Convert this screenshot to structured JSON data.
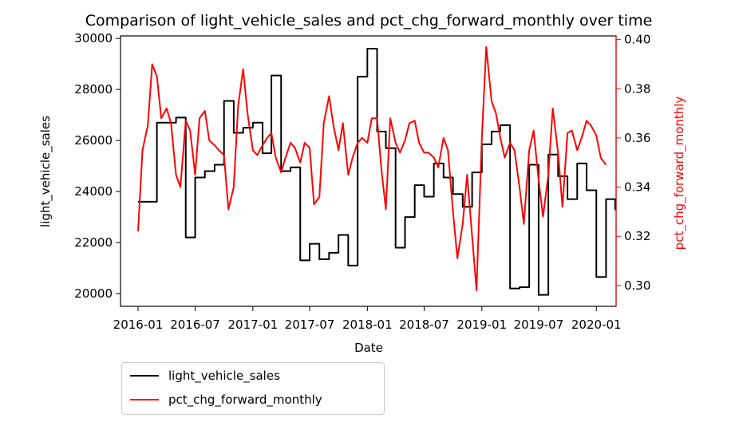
{
  "chart_data": {
    "type": "line",
    "title": "Comparison of light_vehicle_sales and pct_chg_forward_monthly over time",
    "xlabel": "Date",
    "ylabel_left": "light_vehicle_sales",
    "ylabel_right": "pct_chg_forward_monthly",
    "x_ticks": [
      "2016-01",
      "2016-07",
      "2017-01",
      "2017-07",
      "2018-01",
      "2018-07",
      "2019-01",
      "2019-07",
      "2020-01"
    ],
    "y_left_ticks": [
      "20000",
      "22000",
      "24000",
      "26000",
      "28000",
      "30000"
    ],
    "y_right_ticks": [
      "0.30",
      "0.32",
      "0.34",
      "0.36",
      "0.38",
      "0.40"
    ],
    "ylim_left": [
      19500,
      30100
    ],
    "ylim_right": [
      0.2915,
      0.4015
    ],
    "xlim": [
      "2015-11-06",
      "2020-03-04"
    ],
    "legend_placement": "below-left",
    "colors": {
      "light_vehicle_sales": "#000000",
      "pct_chg_forward_monthly": "#ff0000"
    },
    "series": [
      {
        "name": "light_vehicle_sales",
        "axis": "left",
        "step": true,
        "points": [
          [
            "2016-01-01",
            23600
          ],
          [
            "2016-02-01",
            23600
          ],
          [
            "2016-03-01",
            26700
          ],
          [
            "2016-04-01",
            26700
          ],
          [
            "2016-05-01",
            26900
          ],
          [
            "2016-06-01",
            22200
          ],
          [
            "2016-07-01",
            24550
          ],
          [
            "2016-08-01",
            24800
          ],
          [
            "2016-09-01",
            25050
          ],
          [
            "2016-10-01",
            27550
          ],
          [
            "2016-11-01",
            26300
          ],
          [
            "2016-12-01",
            26500
          ],
          [
            "2017-01-01",
            26700
          ],
          [
            "2017-02-01",
            25500
          ],
          [
            "2017-03-01",
            28550
          ],
          [
            "2017-04-01",
            24800
          ],
          [
            "2017-05-01",
            24950
          ],
          [
            "2017-06-01",
            21300
          ],
          [
            "2017-07-01",
            21950
          ],
          [
            "2017-08-01",
            21350
          ],
          [
            "2017-09-01",
            21600
          ],
          [
            "2017-10-01",
            22300
          ],
          [
            "2017-11-01",
            21100
          ],
          [
            "2017-12-01",
            28500
          ],
          [
            "2018-01-01",
            29600
          ],
          [
            "2018-02-01",
            26350
          ],
          [
            "2018-03-01",
            25700
          ],
          [
            "2018-04-01",
            21800
          ],
          [
            "2018-05-01",
            23000
          ],
          [
            "2018-06-01",
            24250
          ],
          [
            "2018-07-01",
            23800
          ],
          [
            "2018-08-01",
            25100
          ],
          [
            "2018-09-01",
            24550
          ],
          [
            "2018-10-01",
            23900
          ],
          [
            "2018-11-01",
            23400
          ],
          [
            "2018-12-01",
            24750
          ],
          [
            "2019-01-01",
            25850
          ],
          [
            "2019-02-01",
            26350
          ],
          [
            "2019-03-01",
            26600
          ],
          [
            "2019-04-01",
            20200
          ],
          [
            "2019-05-01",
            20250
          ],
          [
            "2019-06-01",
            25050
          ],
          [
            "2019-07-01",
            19950
          ],
          [
            "2019-08-01",
            25450
          ],
          [
            "2019-09-01",
            24600
          ],
          [
            "2019-10-01",
            23700
          ],
          [
            "2019-11-01",
            25100
          ],
          [
            "2019-12-01",
            24050
          ],
          [
            "2020-01-01",
            20650
          ],
          [
            "2020-02-01",
            23700
          ],
          [
            "2020-03-01",
            23300
          ],
          [
            "2020-03-04",
            23300
          ]
        ]
      },
      {
        "name": "pct_chg_forward_monthly",
        "axis": "right",
        "step": false,
        "points": [
          [
            "2016-01-01",
            0.322
          ],
          [
            "2016-01-15",
            0.355
          ],
          [
            "2016-02-01",
            0.365
          ],
          [
            "2016-02-15",
            0.39
          ],
          [
            "2016-03-01",
            0.385
          ],
          [
            "2016-03-15",
            0.368
          ],
          [
            "2016-04-01",
            0.372
          ],
          [
            "2016-04-15",
            0.366
          ],
          [
            "2016-05-01",
            0.345
          ],
          [
            "2016-05-15",
            0.34
          ],
          [
            "2016-06-01",
            0.367
          ],
          [
            "2016-06-15",
            0.363
          ],
          [
            "2016-07-01",
            0.345
          ],
          [
            "2016-07-15",
            0.368
          ],
          [
            "2016-08-01",
            0.371
          ],
          [
            "2016-08-15",
            0.359
          ],
          [
            "2016-09-01",
            0.357
          ],
          [
            "2016-09-15",
            0.355
          ],
          [
            "2016-10-01",
            0.353
          ],
          [
            "2016-10-15",
            0.331
          ],
          [
            "2016-11-01",
            0.34
          ],
          [
            "2016-11-15",
            0.373
          ],
          [
            "2016-12-01",
            0.388
          ],
          [
            "2016-12-15",
            0.37
          ],
          [
            "2017-01-01",
            0.355
          ],
          [
            "2017-01-15",
            0.353
          ],
          [
            "2017-02-01",
            0.357
          ],
          [
            "2017-02-15",
            0.36
          ],
          [
            "2017-03-01",
            0.362
          ],
          [
            "2017-03-15",
            0.352
          ],
          [
            "2017-04-01",
            0.346
          ],
          [
            "2017-04-15",
            0.352
          ],
          [
            "2017-05-01",
            0.358
          ],
          [
            "2017-05-15",
            0.356
          ],
          [
            "2017-06-01",
            0.35
          ],
          [
            "2017-06-15",
            0.358
          ],
          [
            "2017-07-01",
            0.356
          ],
          [
            "2017-07-15",
            0.333
          ],
          [
            "2017-08-01",
            0.336
          ],
          [
            "2017-08-15",
            0.366
          ],
          [
            "2017-09-01",
            0.377
          ],
          [
            "2017-09-15",
            0.365
          ],
          [
            "2017-10-01",
            0.355
          ],
          [
            "2017-10-15",
            0.366
          ],
          [
            "2017-11-01",
            0.345
          ],
          [
            "2017-11-15",
            0.352
          ],
          [
            "2017-12-01",
            0.358
          ],
          [
            "2017-12-15",
            0.36
          ],
          [
            "2018-01-01",
            0.358
          ],
          [
            "2018-01-15",
            0.368
          ],
          [
            "2018-02-01",
            0.368
          ],
          [
            "2018-02-15",
            0.347
          ],
          [
            "2018-03-01",
            0.331
          ],
          [
            "2018-03-15",
            0.368
          ],
          [
            "2018-04-01",
            0.358
          ],
          [
            "2018-04-15",
            0.354
          ],
          [
            "2018-05-01",
            0.359
          ],
          [
            "2018-05-15",
            0.366
          ],
          [
            "2018-06-01",
            0.367
          ],
          [
            "2018-06-15",
            0.358
          ],
          [
            "2018-07-01",
            0.354
          ],
          [
            "2018-07-15",
            0.354
          ],
          [
            "2018-08-01",
            0.352
          ],
          [
            "2018-08-15",
            0.348
          ],
          [
            "2018-09-01",
            0.36
          ],
          [
            "2018-09-15",
            0.355
          ],
          [
            "2018-10-01",
            0.33
          ],
          [
            "2018-10-15",
            0.311
          ],
          [
            "2018-11-01",
            0.325
          ],
          [
            "2018-11-15",
            0.345
          ],
          [
            "2018-12-01",
            0.32
          ],
          [
            "2018-12-15",
            0.298
          ],
          [
            "2019-01-01",
            0.36
          ],
          [
            "2019-01-15",
            0.397
          ],
          [
            "2019-02-01",
            0.375
          ],
          [
            "2019-02-15",
            0.37
          ],
          [
            "2019-03-01",
            0.36
          ],
          [
            "2019-03-15",
            0.352
          ],
          [
            "2019-04-01",
            0.358
          ],
          [
            "2019-04-15",
            0.355
          ],
          [
            "2019-05-01",
            0.34
          ],
          [
            "2019-05-15",
            0.325
          ],
          [
            "2019-06-01",
            0.355
          ],
          [
            "2019-06-15",
            0.363
          ],
          [
            "2019-07-01",
            0.343
          ],
          [
            "2019-07-15",
            0.328
          ],
          [
            "2019-08-01",
            0.345
          ],
          [
            "2019-08-15",
            0.372
          ],
          [
            "2019-09-01",
            0.354
          ],
          [
            "2019-09-15",
            0.332
          ],
          [
            "2019-10-01",
            0.362
          ],
          [
            "2019-10-15",
            0.363
          ],
          [
            "2019-11-01",
            0.355
          ],
          [
            "2019-11-15",
            0.36
          ],
          [
            "2019-12-01",
            0.367
          ],
          [
            "2019-12-15",
            0.365
          ],
          [
            "2020-01-01",
            0.361
          ],
          [
            "2020-01-15",
            0.352
          ],
          [
            "2020-02-01",
            0.349
          ]
        ]
      }
    ]
  }
}
